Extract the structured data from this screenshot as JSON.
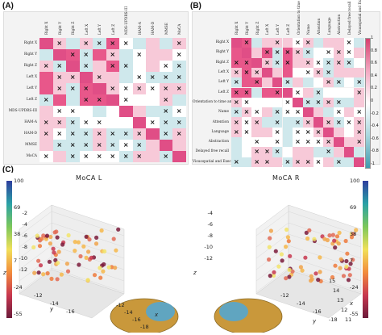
{
  "panels": {
    "a": {
      "label": "(A)"
    },
    "b": {
      "label": "(B)"
    },
    "c": {
      "label": "(C)"
    }
  },
  "heatmap_a": {
    "row_labels": [
      "Right X",
      "Right Y",
      "Right Z",
      "Left X",
      "Left Y",
      "Left Z",
      "MDS-UPDRS-III",
      "HAM-A",
      "HAM-D",
      "MMSE",
      "MoCA"
    ],
    "col_labels": [
      "Right X",
      "Right Y",
      "Right Z",
      "Left X",
      "Left Y",
      "Left Z",
      "MDS-UPDRS-III",
      "HAM-A",
      "HAM-D",
      "MMSE",
      "MoCA"
    ]
  },
  "heatmap_b": {
    "row_labels": [
      "Right X",
      "Right Y",
      "Right Z",
      "Left X",
      "Left Y",
      "Left Z",
      "Orientation to time and place",
      "Name",
      "Attention",
      "Language",
      "Abstraction",
      "Delayed free recall",
      "Visuospatial and Executive abilities"
    ],
    "col_labels": [
      "Right X",
      "Right Y",
      "Right Z",
      "Left X",
      "Left Y",
      "Left Z",
      "Orientation to time and place",
      "Name",
      "Attention",
      "Language",
      "Abstraction",
      "Delayed free recall",
      "Visuospatial and Executive abilities"
    ],
    "colorbar_ticks": [
      "1",
      "0.8",
      "0.6",
      "0.4",
      "0.2",
      "0",
      "-0.2",
      "-0.4",
      "-0.6",
      "-0.8",
      "-1"
    ]
  },
  "scatter_left": {
    "title": "MoCA L",
    "z_ticks": [
      "-2",
      "-4",
      "-6",
      "-8",
      "-10",
      "-12"
    ],
    "y_ticks": [
      "-12",
      "-14",
      "-16"
    ],
    "x_ticks": [
      "-12",
      "-14",
      "-16",
      "-18"
    ],
    "axis_x": "x",
    "axis_y": "y",
    "axis_z": "z",
    "colorbar_ticks": [
      "100",
      "69",
      "38",
      "7",
      "-24",
      "-55"
    ]
  },
  "scatter_right": {
    "title": "MoCA R",
    "z_ticks": [
      "-4",
      "-6",
      "-8",
      "-10",
      "-12"
    ],
    "y_ticks": [
      "-12",
      "-14",
      "-16",
      "-18"
    ],
    "x_ticks": [
      "15",
      "14",
      "13",
      "12",
      "11"
    ],
    "axis_x": "x",
    "axis_y": "y",
    "axis_z": "z",
    "colorbar_ticks": [
      "100",
      "69",
      "38",
      "7",
      "-24",
      "-55"
    ]
  },
  "colors": {
    "pos_strong": "#e8578a",
    "pos_weak": "#f7c9d8",
    "neg_strong": "#6fb7c4",
    "neg_weak": "#cfe8ec",
    "diag": "#e04e86"
  }
}
